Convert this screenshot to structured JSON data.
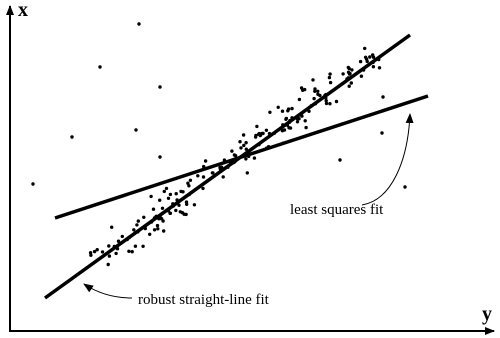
{
  "axes": {
    "vertical": "x",
    "horizontal": "y"
  },
  "annotations": {
    "least_squares": "least squares fit",
    "robust": "robust straight-line fit"
  }
}
